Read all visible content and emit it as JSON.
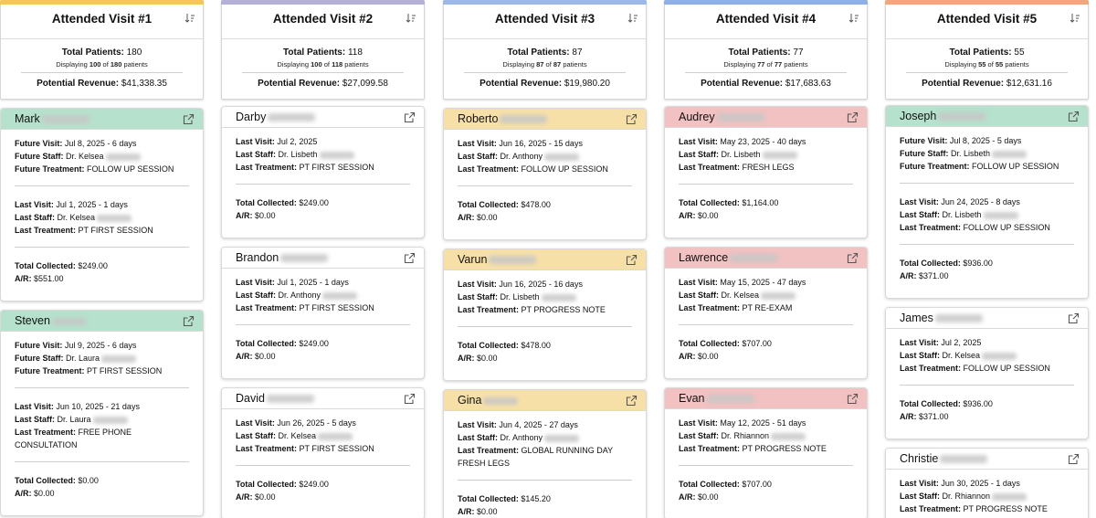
{
  "columns": [
    {
      "title": "Attended Visit #1",
      "accent": "#f5c75a",
      "stats": {
        "total_label": "Total Patients:",
        "total_value": "180",
        "disp_a": "Displaying",
        "disp_shown": "100",
        "disp_of": "of",
        "disp_total": "180",
        "disp_b": "patients",
        "rev_label": "Potential Revenue:",
        "rev_value": "$41,338.35"
      },
      "cards": [
        {
          "first": "Mark",
          "rows": [
            [
              "Future Visit:",
              "Jul 8, 2025 - 6 days"
            ],
            [
              "Future Staff:",
              "Dr. Kelsea"
            ],
            [
              "Future Treatment:",
              "FOLLOW UP SESSION"
            ]
          ],
          "rows2": [
            [
              "Last Visit:",
              "Jul 1, 2025 - 1 days"
            ],
            [
              "Last Staff:",
              "Dr. Kelsea"
            ],
            [
              "Last Treatment:",
              "PT FIRST SESSION"
            ]
          ],
          "rows3": [
            [
              "Total Collected:",
              "$249.00"
            ],
            [
              "A/R:",
              "$551.00"
            ]
          ]
        },
        {
          "first": "Steven",
          "rows": [
            [
              "Future Visit:",
              "Jul 9, 2025 - 6 days"
            ],
            [
              "Future Staff:",
              "Dr. Laura"
            ],
            [
              "Future Treatment:",
              "PT FIRST SESSION"
            ]
          ],
          "rows2": [
            [
              "Last Visit:",
              "Jun 10, 2025 - 21 days"
            ],
            [
              "Last Staff:",
              "Dr. Laura"
            ],
            [
              "Last Treatment:",
              "FREE PHONE CONSULTATION"
            ]
          ],
          "rows3": [
            [
              "Total Collected:",
              "$0.00"
            ],
            [
              "A/R:",
              "$0.00"
            ]
          ]
        }
      ]
    },
    {
      "title": "Attended Visit #2",
      "accent": "#b4b0d6",
      "stats": {
        "total_label": "Total Patients:",
        "total_value": "118",
        "disp_a": "Displaying",
        "disp_shown": "100",
        "disp_of": "of",
        "disp_total": "118",
        "disp_b": "patients",
        "rev_label": "Potential Revenue:",
        "rev_value": "$27,099.58"
      },
      "cards": [
        {
          "first": "Darby",
          "rows": [
            [
              "Last Visit:",
              "Jul 2, 2025"
            ],
            [
              "Last Staff:",
              "Dr. Lisbeth"
            ],
            [
              "Last Treatment:",
              "PT FIRST SESSION"
            ]
          ],
          "rows3": [
            [
              "Total Collected:",
              "$249.00"
            ],
            [
              "A/R:",
              "$0.00"
            ]
          ]
        },
        {
          "first": "Brandon",
          "rows": [
            [
              "Last Visit:",
              "Jul 1, 2025 - 1 days"
            ],
            [
              "Last Staff:",
              "Dr. Anthony"
            ],
            [
              "Last Treatment:",
              "PT FIRST SESSION"
            ]
          ],
          "rows3": [
            [
              "Total Collected:",
              "$249.00"
            ],
            [
              "A/R:",
              "$0.00"
            ]
          ]
        },
        {
          "first": "David",
          "rows": [
            [
              "Last Visit:",
              "Jun 26, 2025 - 5 days"
            ],
            [
              "Last Staff:",
              "Dr. Kelsea"
            ],
            [
              "Last Treatment:",
              "PT FIRST SESSION"
            ]
          ],
          "rows3": [
            [
              "Total Collected:",
              "$249.00"
            ],
            [
              "A/R:",
              "$0.00"
            ]
          ]
        }
      ]
    },
    {
      "title": "Attended Visit #3",
      "accent": "#9db9e8",
      "stats": {
        "total_label": "Total Patients:",
        "total_value": "87",
        "disp_a": "Displaying",
        "disp_shown": "87",
        "disp_of": "of",
        "disp_total": "87",
        "disp_b": "patients",
        "rev_label": "Potential Revenue:",
        "rev_value": "$19,980.20"
      },
      "cards": [
        {
          "first": "Roberto",
          "rows": [
            [
              "Last Visit:",
              "Jun 16, 2025 - 15 days"
            ],
            [
              "Last Staff:",
              "Dr. Anthony"
            ],
            [
              "Last Treatment:",
              "FOLLOW UP SESSION"
            ]
          ],
          "rows3": [
            [
              "Total Collected:",
              "$478.00"
            ],
            [
              "A/R:",
              "$0.00"
            ]
          ]
        },
        {
          "first": "Varun",
          "rows": [
            [
              "Last Visit:",
              "Jun 16, 2025 - 16 days"
            ],
            [
              "Last Staff:",
              "Dr. Lisbeth"
            ],
            [
              "Last Treatment:",
              "PT PROGRESS NOTE"
            ]
          ],
          "rows3": [
            [
              "Total Collected:",
              "$478.00"
            ],
            [
              "A/R:",
              "$0.00"
            ]
          ]
        },
        {
          "first": "Gina",
          "rows": [
            [
              "Last Visit:",
              "Jun 4, 2025 - 27 days"
            ],
            [
              "Last Staff:",
              "Dr. Anthony"
            ],
            [
              "Last Treatment:",
              "GLOBAL RUNNING DAY FRESH LEGS"
            ]
          ],
          "rows3": [
            [
              "Total Collected:",
              "$145.20"
            ],
            [
              "A/R:",
              "$0.00"
            ]
          ]
        }
      ]
    },
    {
      "title": "Attended Visit #4",
      "accent": "#8eb0e6",
      "stats": {
        "total_label": "Total Patients:",
        "total_value": "77",
        "disp_a": "Displaying",
        "disp_shown": "77",
        "disp_of": "of",
        "disp_total": "77",
        "disp_b": "patients",
        "rev_label": "Potential Revenue:",
        "rev_value": "$17,683.63"
      },
      "cards": [
        {
          "first": "Audrey",
          "rows": [
            [
              "Last Visit:",
              "May 23, 2025 - 40 days"
            ],
            [
              "Last Staff:",
              "Dr. Lisbeth"
            ],
            [
              "Last Treatment:",
              "FRESH LEGS"
            ]
          ],
          "rows3": [
            [
              "Total Collected:",
              "$1,164.00"
            ],
            [
              "A/R:",
              "$0.00"
            ]
          ]
        },
        {
          "first": "Lawrence",
          "rows": [
            [
              "Last Visit:",
              "May 15, 2025 - 47 days"
            ],
            [
              "Last Staff:",
              "Dr. Kelsea"
            ],
            [
              "Last Treatment:",
              "PT RE-EXAM"
            ]
          ],
          "rows3": [
            [
              "Total Collected:",
              "$707.00"
            ],
            [
              "A/R:",
              "$0.00"
            ]
          ]
        },
        {
          "first": "Evan",
          "rows": [
            [
              "Last Visit:",
              "May 12, 2025 - 51 days"
            ],
            [
              "Last Staff:",
              "Dr. Rhiannon"
            ],
            [
              "Last Treatment:",
              "PT PROGRESS NOTE"
            ]
          ],
          "rows3": [
            [
              "Total Collected:",
              "$707.00"
            ],
            [
              "A/R:",
              "$0.00"
            ]
          ]
        }
      ]
    },
    {
      "title": "Attended Visit #5",
      "accent": "#f0a77d",
      "stats": {
        "total_label": "Total Patients:",
        "total_value": "55",
        "disp_a": "Displaying",
        "disp_shown": "55",
        "disp_of": "of",
        "disp_total": "55",
        "disp_b": "patients",
        "rev_label": "Potential Revenue:",
        "rev_value": "$12,631.16"
      },
      "cards": [
        {
          "first": "Joseph",
          "rows": [
            [
              "Future Visit:",
              "Jul 8, 2025 - 5 days"
            ],
            [
              "Future Staff:",
              "Dr. Lisbeth"
            ],
            [
              "Future Treatment:",
              "FOLLOW UP SESSION"
            ]
          ],
          "rows2": [
            [
              "Last Visit:",
              "Jun 24, 2025 - 8 days"
            ],
            [
              "Last Staff:",
              "Dr. Lisbeth"
            ],
            [
              "Last Treatment:",
              "FOLLOW UP SESSION"
            ]
          ],
          "rows3": [
            [
              "Total Collected:",
              "$936.00"
            ],
            [
              "A/R:",
              "$371.00"
            ]
          ]
        },
        {
          "first": "James",
          "rows": [
            [
              "Last Visit:",
              "Jul 2, 2025"
            ],
            [
              "Last Staff:",
              "Dr. Kelsea"
            ],
            [
              "Last Treatment:",
              "FOLLOW UP SESSION"
            ]
          ],
          "rows3": [
            [
              "Total Collected:",
              "$936.00"
            ],
            [
              "A/R:",
              "$371.00"
            ]
          ]
        },
        {
          "first": "Christie",
          "rows": [
            [
              "Last Visit:",
              "Jun 30, 2025 - 1 days"
            ],
            [
              "Last Staff:",
              "Dr. Rhiannon"
            ],
            [
              "Last Treatment:",
              "PT PROGRESS NOTE"
            ]
          ],
          "rows3": []
        }
      ]
    }
  ],
  "colors": {
    "green": "#b6e1cd",
    "yellow": "#f7e0a8",
    "red": "#f2c1c1"
  }
}
